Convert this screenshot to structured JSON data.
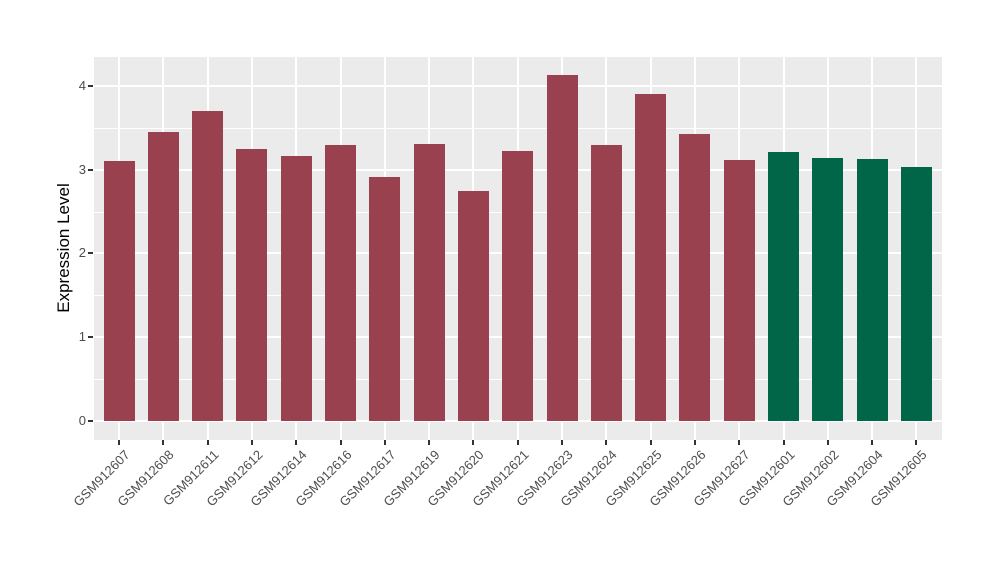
{
  "chart_data": {
    "type": "bar",
    "title": "",
    "xlabel": "",
    "ylabel": "Expression Level",
    "ylim": [
      -0.22,
      4.34
    ],
    "yticks": [
      "0",
      "1",
      "2",
      "3",
      "4"
    ],
    "ytick_values": [
      0,
      1,
      2,
      3,
      4
    ],
    "y_minor_gridlines": [
      0.5,
      1.5,
      2.5,
      3.5
    ],
    "grid": "on",
    "legend_position": "none",
    "categories": [
      "GSM912607",
      "GSM912608",
      "GSM912611",
      "GSM912612",
      "GSM912614",
      "GSM912616",
      "GSM912617",
      "GSM912619",
      "GSM912620",
      "GSM912621",
      "GSM912623",
      "GSM912624",
      "GSM912625",
      "GSM912626",
      "GSM912627",
      "GSM912601",
      "GSM912602",
      "GSM912604",
      "GSM912605"
    ],
    "values": [
      3.1,
      3.45,
      3.7,
      3.25,
      3.16,
      3.29,
      2.91,
      3.3,
      2.74,
      3.22,
      4.13,
      3.29,
      3.9,
      3.42,
      3.11,
      3.21,
      3.14,
      3.13,
      3.03
    ],
    "bar_colors": [
      "#9A4150",
      "#9A4150",
      "#9A4150",
      "#9A4150",
      "#9A4150",
      "#9A4150",
      "#9A4150",
      "#9A4150",
      "#9A4150",
      "#9A4150",
      "#9A4150",
      "#9A4150",
      "#9A4150",
      "#9A4150",
      "#9A4150",
      "#006647",
      "#006647",
      "#006647",
      "#006647"
    ],
    "groups": [
      {
        "name": "maroon-group",
        "color": "#9A4150",
        "count": 15
      },
      {
        "name": "green-group",
        "color": "#006647",
        "count": 4
      }
    ]
  },
  "colors": {
    "page_background": "#FFFFFF",
    "panel_background": "#EBEBEB",
    "gridline": "#FFFFFF",
    "axis_text": "#4D4D4D",
    "axis_title": "#000000",
    "tick_mark": "#333333",
    "bar_maroon": "#9A4150",
    "bar_green": "#006647"
  }
}
